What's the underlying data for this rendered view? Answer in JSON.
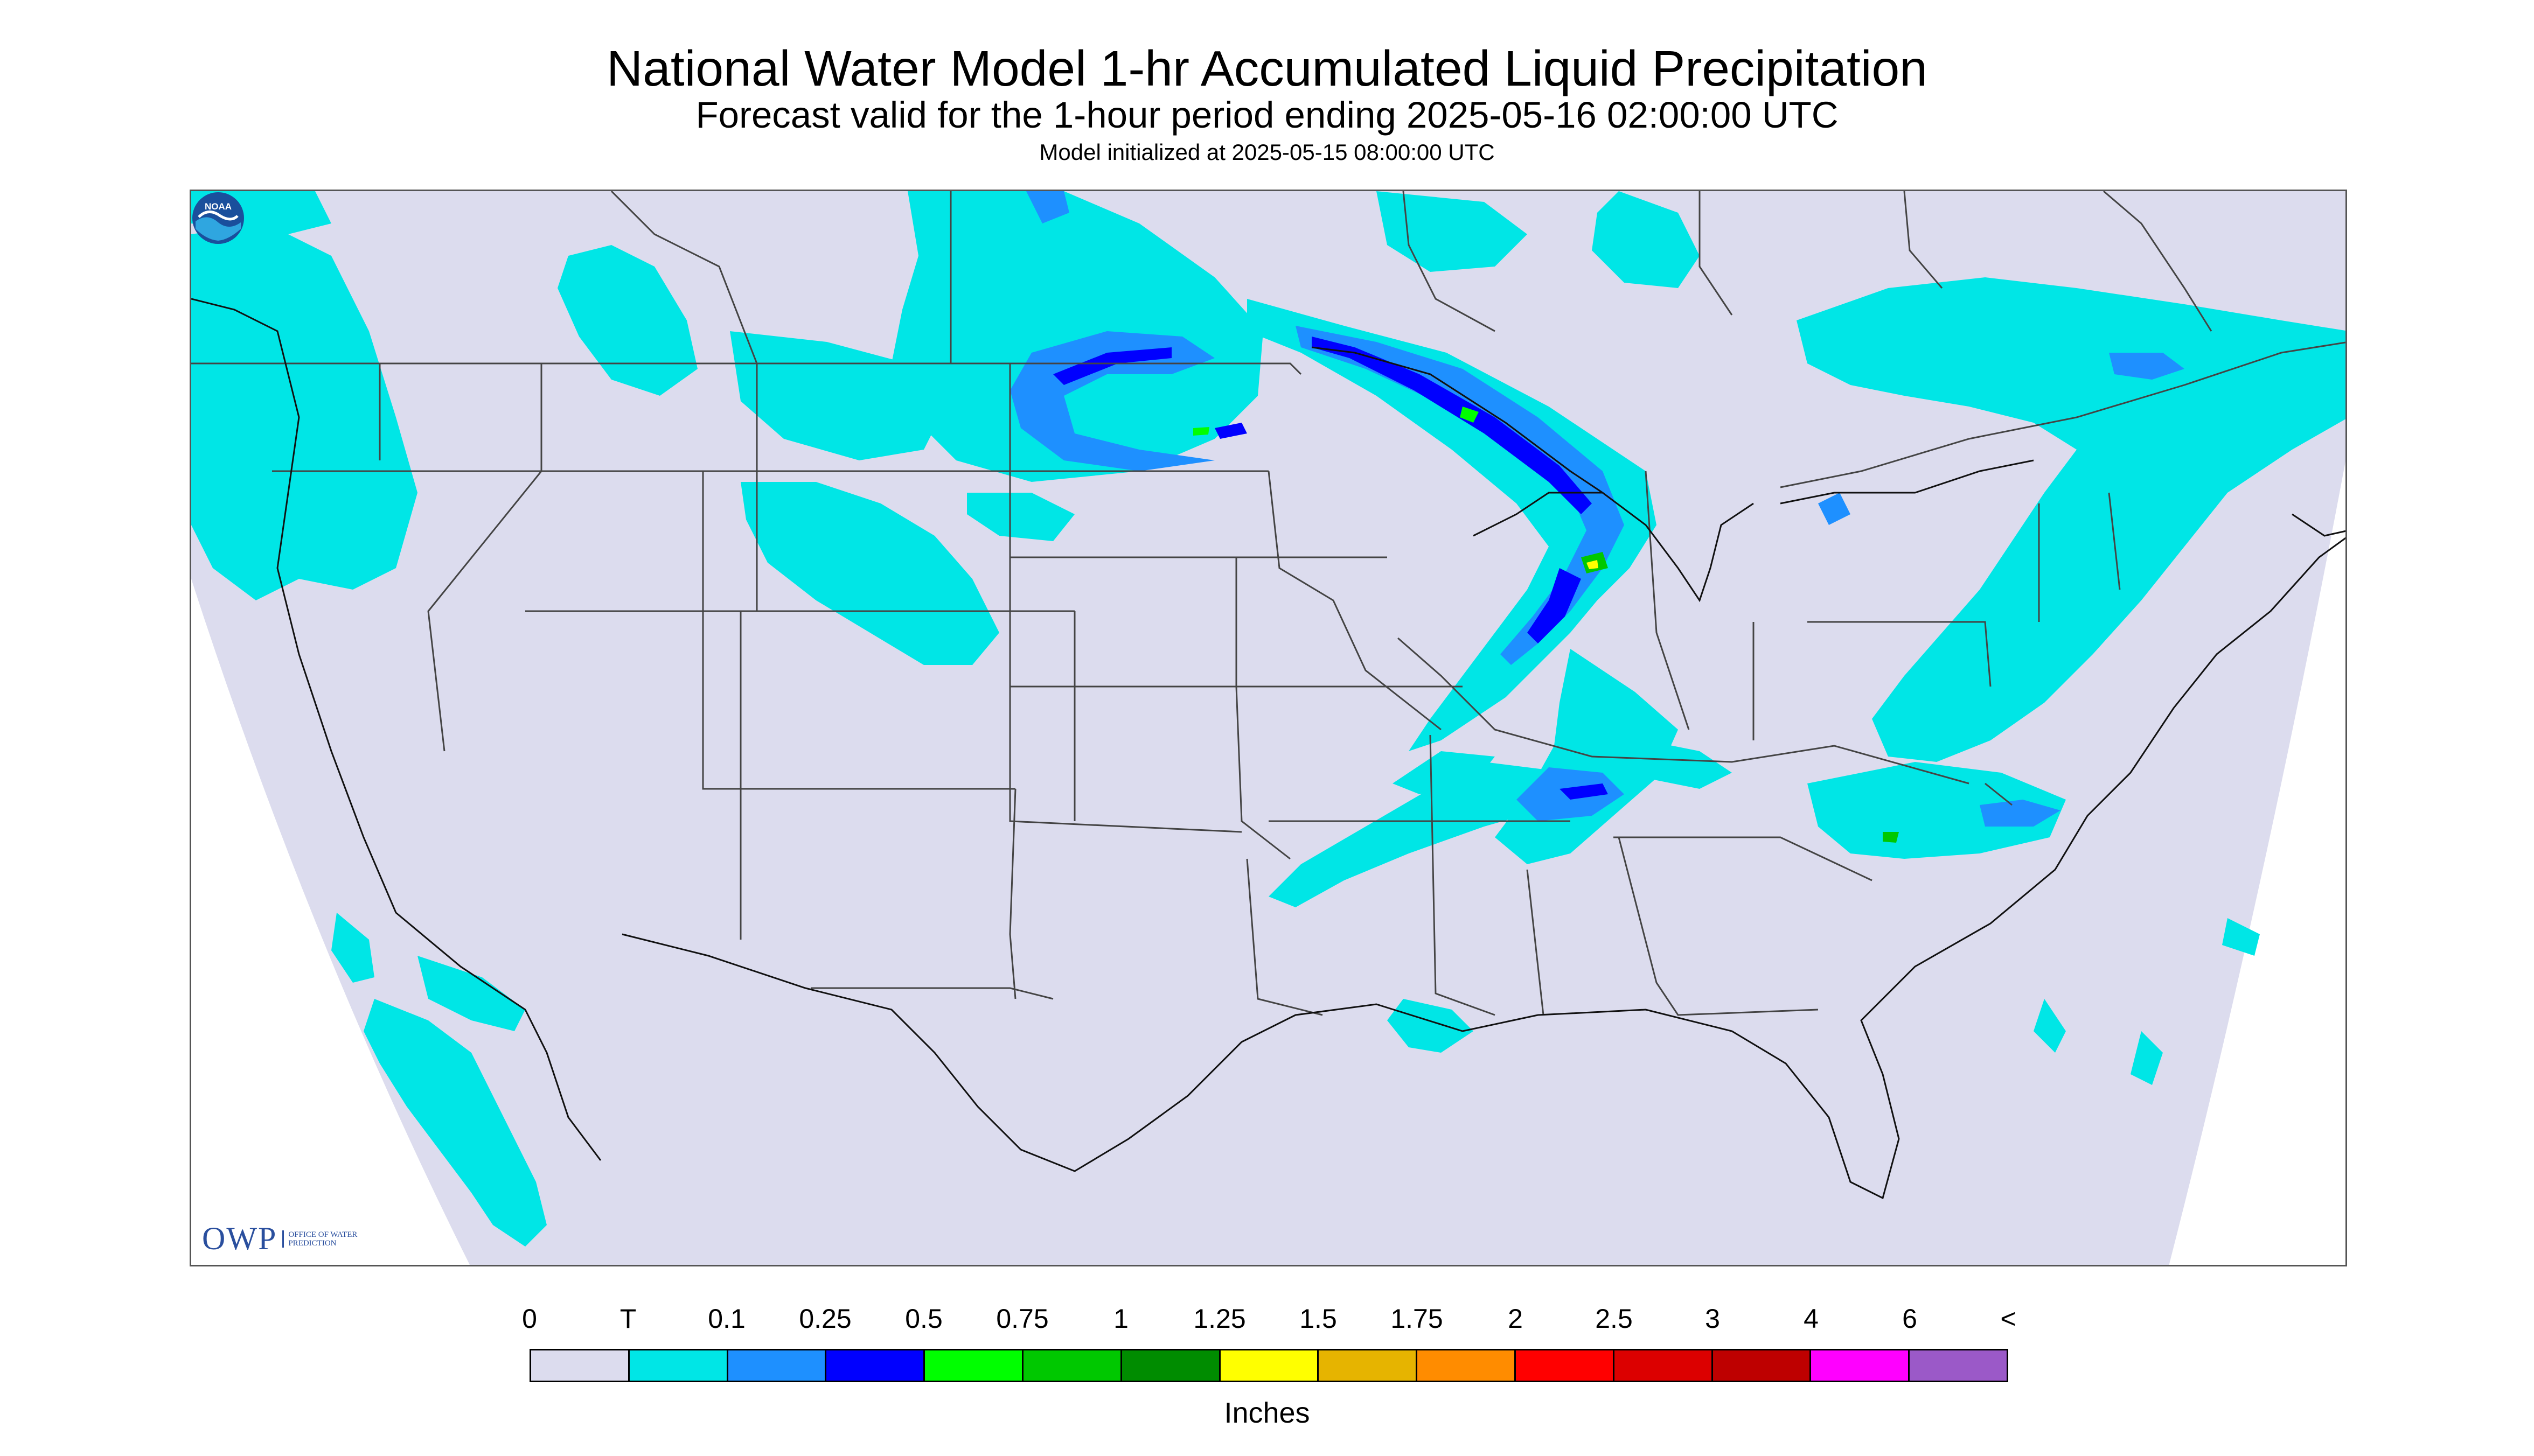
{
  "header": {
    "title": "National Water Model 1-hr Accumulated Liquid Precipitation",
    "subtitle": "Forecast valid for the 1-hour period ending 2025-05-16 02:00:00 UTC",
    "init": "Model initialized at 2025-05-15 08:00:00 UTC"
  },
  "logos": {
    "owp_mark": "OWP",
    "owp_name": "OFFICE OF WATER PREDICTION",
    "noaa_mark": "NOAA"
  },
  "colorbar": {
    "labels": [
      "0",
      "T",
      "0.1",
      "0.25",
      "0.5",
      "0.75",
      "1",
      "1.25",
      "1.5",
      "1.75",
      "2",
      "2.5",
      "3",
      "4",
      "6",
      "<"
    ],
    "colors": [
      "#dcdcee",
      "#00e6e6",
      "#1e90ff",
      "#0000ff",
      "#00ff00",
      "#00c800",
      "#008c00",
      "#ffff00",
      "#e6b400",
      "#ff8c00",
      "#ff0000",
      "#dc0000",
      "#be0000",
      "#ff00ff",
      "#9b59c8"
    ],
    "units": "Inches"
  },
  "map": {
    "no_data_color": "#ffffff",
    "zero_color": "#dcdcee",
    "trace_color": "#00e6e6",
    "light_color": "#1e90ff",
    "moderate_color": "#0000ff",
    "border_color": "#444444"
  }
}
